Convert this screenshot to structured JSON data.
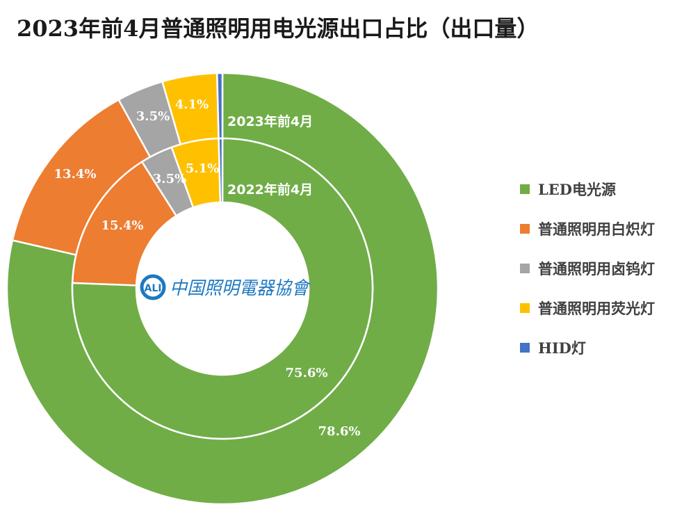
{
  "title": "2023年前4月普通照明用电光源出口占比（出口量）",
  "logo_text": "中国照明電器協會",
  "chart_data": {
    "type": "donut",
    "title": "2023年前4月普通照明用电光源出口占比（出口量）",
    "unit": "%",
    "categories": [
      "LED电光源",
      "普通照明用白炽灯",
      "普通照明用卤钨灯",
      "普通照明用荧光灯",
      "HID灯"
    ],
    "colors": [
      "#70AD47",
      "#ED7D31",
      "#A5A5A5",
      "#FFC000",
      "#4472C4"
    ],
    "series": [
      {
        "name": "2023年前4月",
        "ring": "outer",
        "values": [
          78.6,
          13.4,
          3.5,
          4.1,
          0.4
        ],
        "labels": [
          "78.6%",
          "13.4%",
          "3.5%",
          "4.1%",
          ""
        ]
      },
      {
        "name": "2022年前4月",
        "ring": "inner",
        "values": [
          75.6,
          15.4,
          3.5,
          5.1,
          0.4
        ],
        "labels": [
          "75.6%",
          "15.4%",
          "3.5%",
          "5.1%",
          ""
        ]
      }
    ],
    "legend_position": "right"
  }
}
